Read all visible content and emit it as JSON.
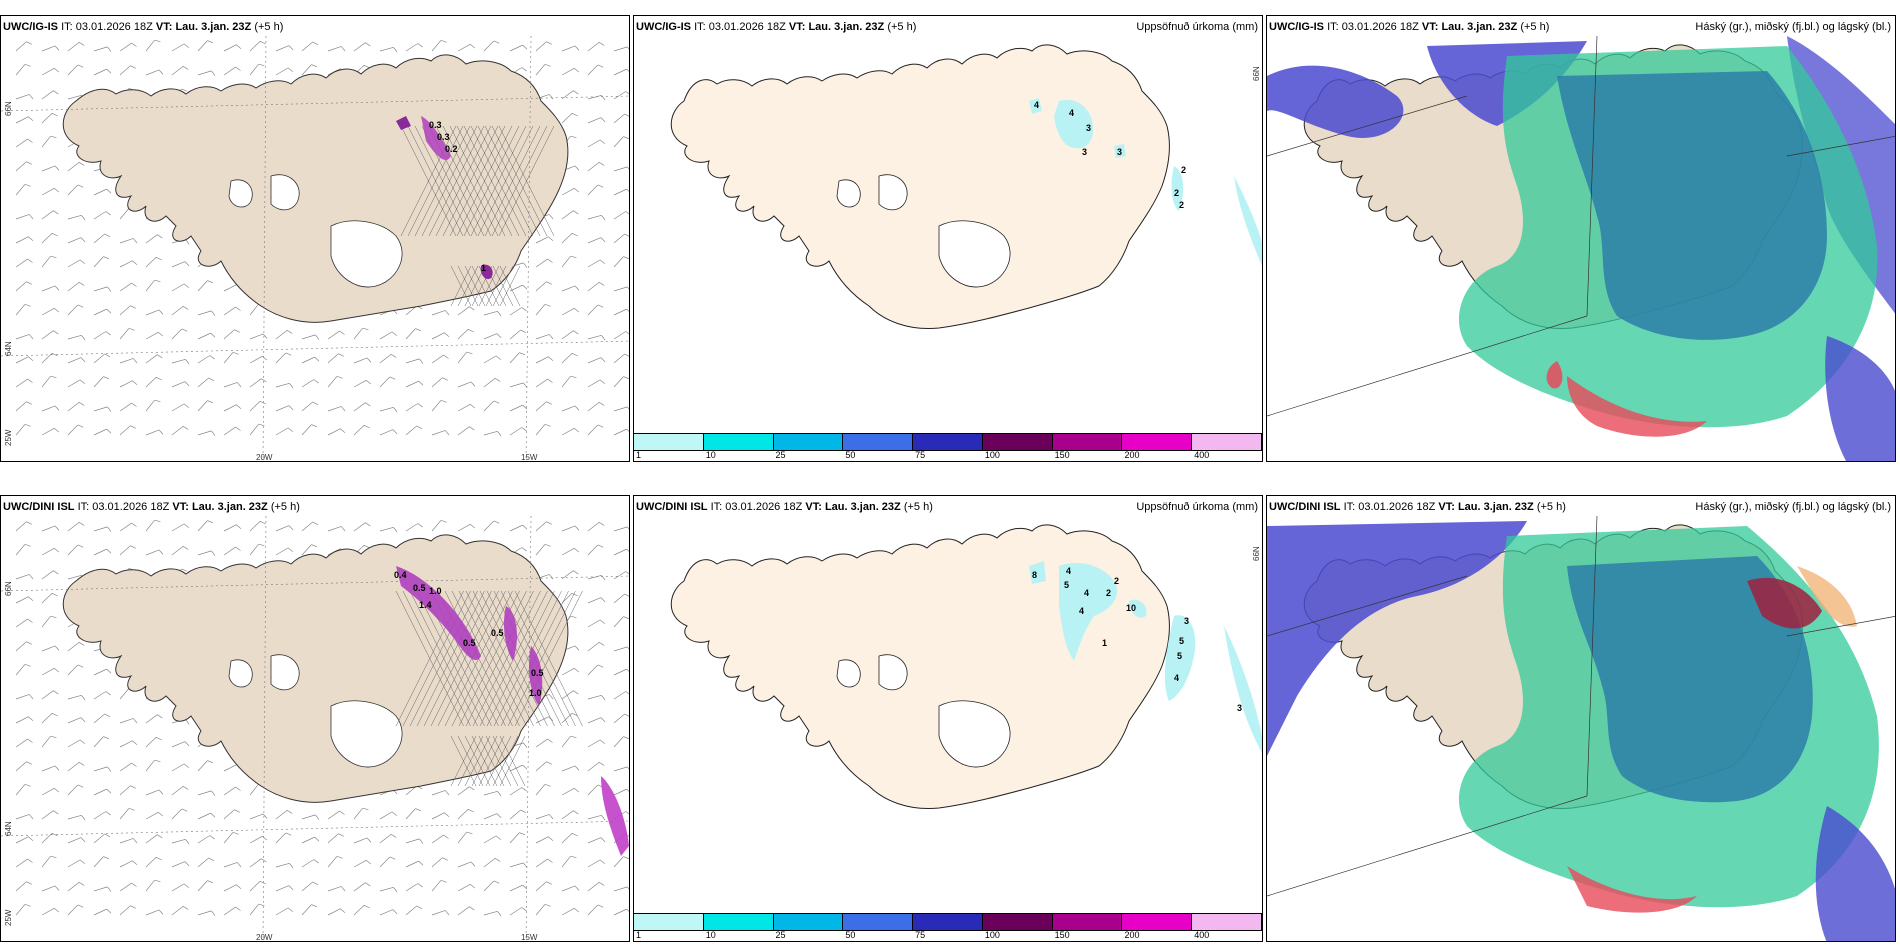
{
  "panels": [
    {
      "id": "top-left",
      "model": "UWC/IG-IS",
      "it_label": "IT:",
      "it_value": "03.01.2026 18Z",
      "vt_label": "VT:",
      "vt_value": "Lau. 3.jan. 23Z",
      "offset": "(+5 h)",
      "right_title": "",
      "lat_labels": [
        "66N",
        "64N"
      ],
      "lon_labels": [
        "20W",
        "15W"
      ],
      "corner_label": "25W",
      "numbers": [
        "0.3",
        "0.3",
        "0.2",
        "1"
      ]
    },
    {
      "id": "top-mid",
      "model": "UWC/IG-IS",
      "it_label": "IT:",
      "it_value": "03.01.2026 18Z",
      "vt_label": "VT:",
      "vt_value": "Lau. 3.jan. 23Z",
      "offset": "(+5 h)",
      "right_title": "Uppsöfnuð úrkoma (mm)",
      "lat_labels": [
        "66N"
      ],
      "numbers": [
        "4",
        "4",
        "3",
        "3",
        "3",
        "2",
        "2",
        "2"
      ]
    },
    {
      "id": "top-right",
      "model": "UWC/IG-IS",
      "it_label": "IT:",
      "it_value": "03.01.2026 18Z",
      "vt_label": "VT:",
      "vt_value": "Lau. 3.jan. 23Z",
      "offset": "(+5 h)",
      "right_title": "Háský (gr.), miðský (fj.bl.) og lágský (bl.)"
    },
    {
      "id": "bottom-left",
      "model": "UWC/DINI ISL",
      "it_label": "IT:",
      "it_value": "03.01.2026 18Z",
      "vt_label": "VT:",
      "vt_value": "Lau. 3.jan. 23Z",
      "offset": "(+5 h)",
      "right_title": "",
      "lat_labels": [
        "66N",
        "64N"
      ],
      "lon_labels": [
        "20W",
        "15W"
      ],
      "corner_label": "25W",
      "numbers": [
        "0.4",
        "0.5",
        "1.0",
        "1.4",
        "0.5",
        "0.5",
        "0.5",
        "1.0"
      ]
    },
    {
      "id": "bottom-mid",
      "model": "UWC/DINI ISL",
      "it_label": "IT:",
      "it_value": "03.01.2026 18Z",
      "vt_label": "VT:",
      "vt_value": "Lau. 3.jan. 23Z",
      "offset": "(+5 h)",
      "right_title": "Uppsöfnuð úrkoma (mm)",
      "lat_labels": [
        "66N"
      ],
      "numbers": [
        "8",
        "4",
        "5",
        "4",
        "4",
        "2",
        "2",
        "10",
        "1",
        "3",
        "5",
        "5",
        "4",
        "3"
      ]
    },
    {
      "id": "bottom-right",
      "model": "UWC/DINI ISL",
      "it_label": "IT:",
      "it_value": "03.01.2026 18Z",
      "vt_label": "VT:",
      "vt_value": "Lau. 3.jan. 23Z",
      "offset": "(+5 h)",
      "right_title": "Háský (gr.), miðský (fj.bl.) og lágský (bl.)"
    }
  ],
  "legend": {
    "ticks": [
      "1",
      "10",
      "25",
      "50",
      "75",
      "100",
      "150",
      "200",
      "400"
    ],
    "colors": [
      "#bff7f7",
      "#00e6e6",
      "#00b7e8",
      "#3c6ee8",
      "#2a2ab8",
      "#6b005a",
      "#a8008c",
      "#e600c8",
      "#f4b8f0"
    ]
  },
  "colors": {
    "land": "#eadccb",
    "land_light": "#fdf1e3",
    "precip_light": "#b8f2f4",
    "purple": "#b040c0",
    "cloud_high": "#2d7fa8",
    "cloud_mid": "#33c99a",
    "cloud_low": "#4a4ad0"
  }
}
